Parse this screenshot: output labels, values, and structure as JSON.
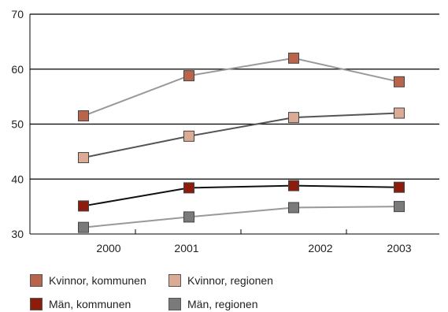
{
  "chart_data": {
    "type": "line",
    "x": [
      "2000",
      "2001",
      "2002",
      "2003"
    ],
    "xlabel": "",
    "ylabel": "",
    "ylim": [
      30,
      70
    ],
    "yticks": [
      30,
      40,
      50,
      60,
      70
    ],
    "grid": "horizontal",
    "legend_position": "bottom",
    "series": [
      {
        "name": "Kvinnor, kommunen",
        "values": [
          51.5,
          58.8,
          62.0,
          57.7
        ],
        "color": "#b8654b",
        "line_color": "#999999"
      },
      {
        "name": "Kvinnor, regionen",
        "values": [
          43.9,
          47.8,
          51.2,
          52.0
        ],
        "color": "#dcab95",
        "line_color": "#555555"
      },
      {
        "name": "Män, kommunen",
        "values": [
          35.1,
          38.4,
          38.8,
          38.5
        ],
        "color": "#8c1c0c",
        "line_color": "#111111"
      },
      {
        "name": "Män, regionen",
        "values": [
          31.2,
          33.1,
          34.8,
          35.0
        ],
        "color": "#7a7a7a",
        "line_color": "#999999"
      }
    ]
  }
}
